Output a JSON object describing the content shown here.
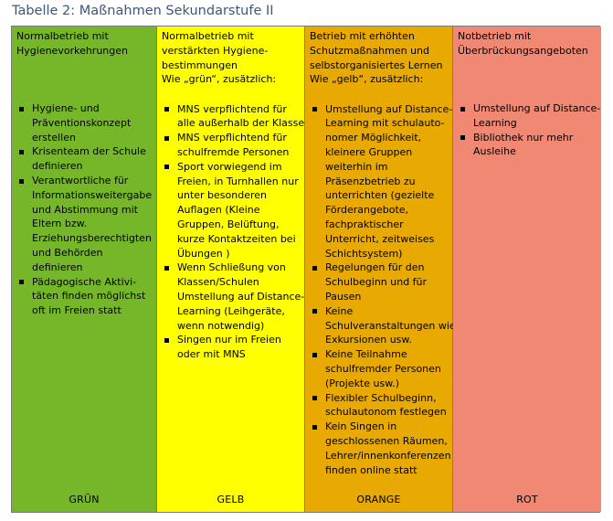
{
  "caption": "Tabelle 2: Maßnahmen Sekundarstufe II",
  "columns": [
    {
      "label": "GRÜN",
      "color": "#76b72a",
      "head": [
        "Normalbetrieb mit",
        "Hygienevorkehrungen"
      ],
      "items": [
        [
          "Hygiene- und",
          "Präventionskonzept",
          "erstellen"
        ],
        [
          "Krisenteam der Schule",
          "definieren"
        ],
        [
          "Verantwortliche für",
          "Informationsweitergabe",
          "und Abstimmung mit",
          "Eltern bzw.",
          "Erziehungsberechtigten",
          "und Behörden",
          "definieren"
        ],
        [
          "Pädagogische Aktivi-",
          "täten finden möglichst",
          "oft im Freien statt"
        ]
      ]
    },
    {
      "label": "GELB",
      "color": "#ffff00",
      "head": [
        "Normalbetrieb mit",
        "verstärkten Hygiene-",
        "bestimmungen",
        "Wie „grün“, zusätzlich:"
      ],
      "items": [
        [
          "MNS verpflichtend für",
          "alle außerhalb der Klasse"
        ],
        [
          "MNS verpflichtend für",
          "schulfremde Personen"
        ],
        [
          "Sport vorwiegend im",
          "Freien, in Turnhallen nur",
          "unter besonderen",
          "Auflagen (Kleine",
          "Gruppen, Belüftung,",
          "kurze Kontaktzeiten bei",
          "Übungen )"
        ],
        [
          "Wenn Schließung von",
          "Klassen/Schulen",
          "Umstellung auf Distance-",
          "Learning (Leihgeräte,",
          "wenn notwendig)"
        ],
        [
          "Singen nur im Freien",
          "oder mit MNS"
        ]
      ]
    },
    {
      "label": "ORANGE",
      "color": "#e8a900",
      "head": [
        "Betrieb mit erhöhten",
        "Schutzmaßnahmen und",
        "selbstorganisiertes Lernen",
        "Wie „gelb“, zusätzlich:"
      ],
      "items": [
        [
          "Umstellung auf Distance-",
          "Learning mit schulauto-",
          "nomer Möglichkeit,",
          "kleinere Gruppen",
          "weiterhin im",
          "Präsenzbetrieb zu",
          "unterrichten (gezielte",
          "Förderangebote,",
          "fachpraktischer",
          "Unterricht, zeitweises",
          "Schichtsystem)"
        ],
        [
          "Regelungen für den",
          "Schulbeginn und für",
          "Pausen"
        ],
        [
          "Keine",
          "Schulveranstaltungen wie",
          "Exkursionen usw."
        ],
        [
          "Keine Teilnahme",
          "schulfremder Personen",
          "(Projekte usw.)"
        ],
        [
          "Flexibler Schulbeginn,",
          "schulautonom festlegen"
        ],
        [
          "Kein Singen in",
          "geschlossenen Räumen,",
          "Lehrer/innenkonferenzen",
          "finden online statt"
        ]
      ]
    },
    {
      "label": "ROT",
      "color": "#f08873",
      "head": [
        "Notbetrieb mit",
        "Überbrückungsangeboten"
      ],
      "items": [
        [
          "Umstellung auf Distance-",
          "Learning"
        ],
        [
          "Bibliothek nur mehr",
          "Ausleihe"
        ]
      ]
    }
  ]
}
